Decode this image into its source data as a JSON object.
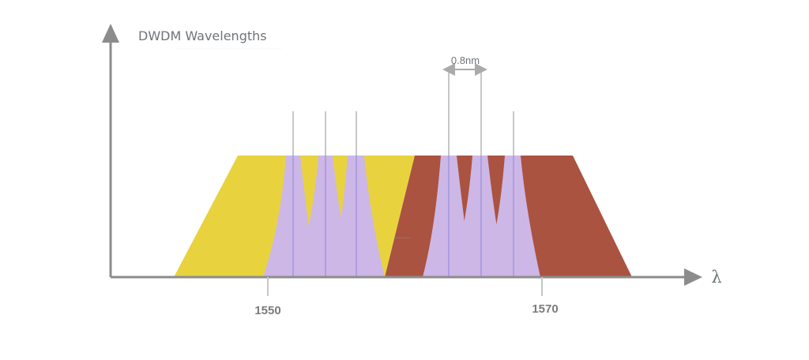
{
  "title": "DWDM Wavelengths",
  "axis": {
    "x_label": "λ",
    "tick_labels": [
      "1550",
      "1570"
    ]
  },
  "channel_spacing_label": "0.8nm",
  "ellipsis": "......",
  "colors": {
    "band_left": "#e8d33f",
    "band_right": "#aa5340",
    "channel": "#cdb7e6",
    "channel_line": "#9c92e0",
    "marker_line": "#c7c7c7",
    "axis": "#8c8c8c"
  }
}
